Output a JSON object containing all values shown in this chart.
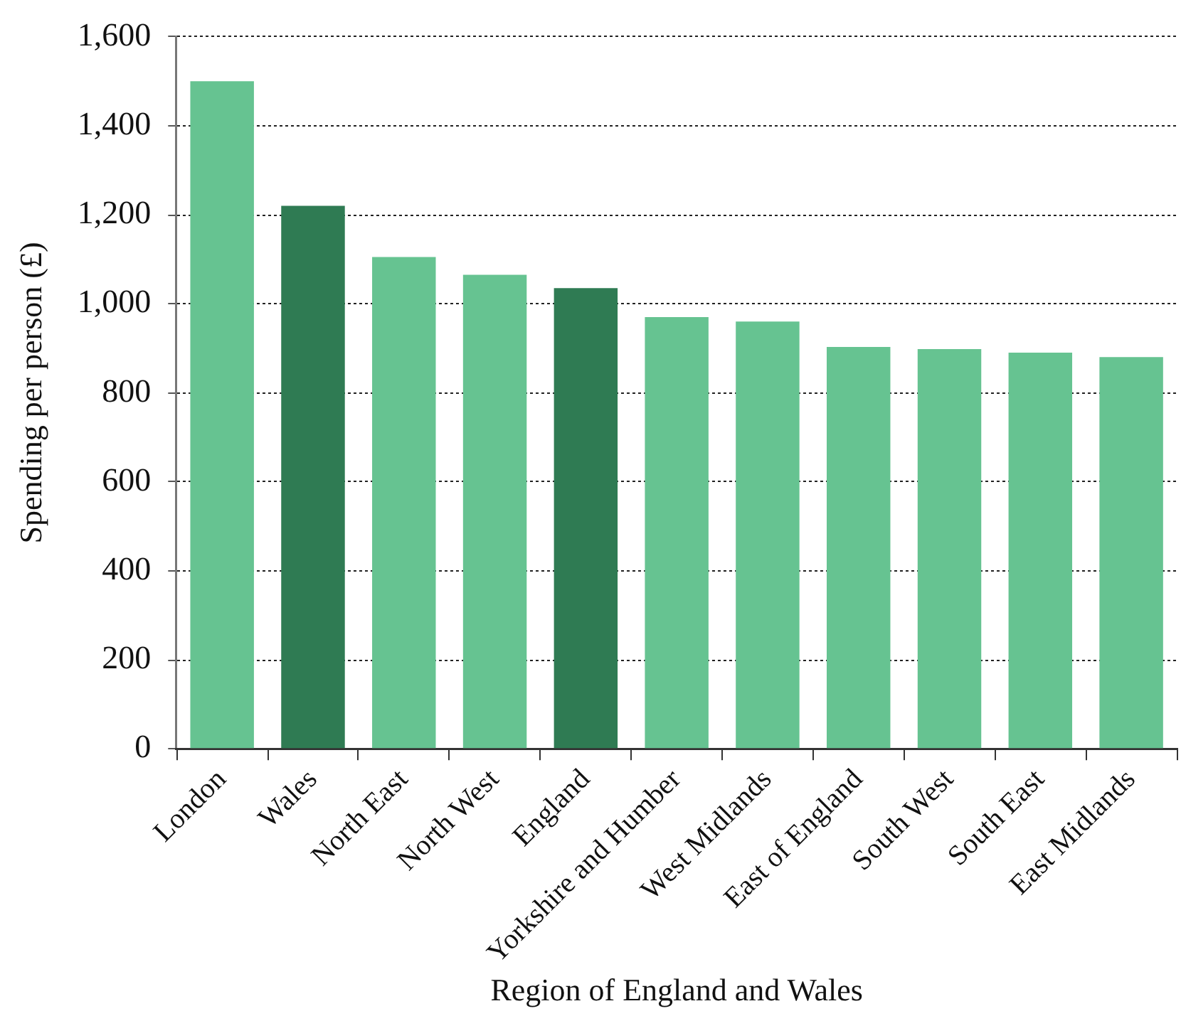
{
  "chart_data": {
    "type": "bar",
    "xlabel": "Region of England and Wales",
    "ylabel": "Spending per person (£)",
    "categories": [
      "London",
      "Wales",
      "North East",
      "North West",
      "England",
      "Yorkshire and Humber",
      "West Midlands",
      "East of England",
      "South West",
      "South East",
      "East Midlands"
    ],
    "values": [
      1500,
      1220,
      1105,
      1065,
      1035,
      970,
      960,
      903,
      898,
      890,
      880
    ],
    "colors": [
      "#66c391",
      "#2f7b53",
      "#66c391",
      "#66c391",
      "#2f7b53",
      "#66c391",
      "#66c391",
      "#66c391",
      "#66c391",
      "#66c391",
      "#66c391"
    ],
    "ylim": [
      0,
      1600
    ],
    "yticks": [
      0,
      200,
      400,
      600,
      800,
      {
        "value": 1000,
        "label": "1,000"
      },
      {
        "value": 1200,
        "label": "1,200"
      },
      {
        "value": 1400,
        "label": "1,400"
      },
      {
        "value": 1600,
        "label": "1,600"
      }
    ],
    "grid": "y"
  }
}
